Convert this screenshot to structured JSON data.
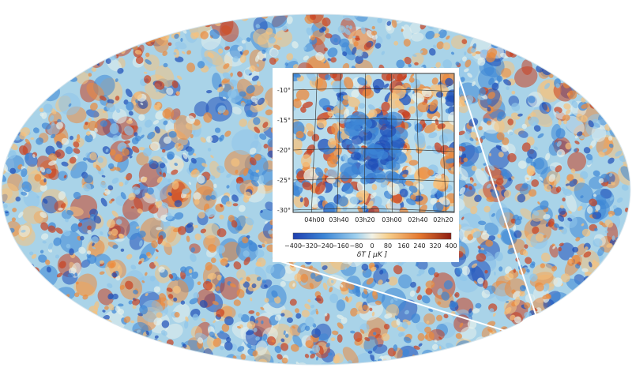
{
  "colors": {
    "deep_blue": "#1f4fb8",
    "blue": "#3d86d6",
    "light_blue": "#8fc4ea",
    "pale": "#e6f1ec",
    "light_orange": "#f6c27d",
    "orange": "#ec8a3c",
    "red": "#c9401f",
    "highlight_ring": "#ffffff"
  },
  "inset": {
    "y_ticks": [
      "-10°",
      "-15°",
      "-20°",
      "-25°",
      "-30°"
    ],
    "x_ticks": [
      "04h00",
      "03h40",
      "03h20",
      "03h00",
      "02h40",
      "02h20"
    ],
    "colorbar": {
      "ticks": [
        "−400",
        "−320",
        "−240",
        "−160",
        "−80",
        "0",
        "80",
        "160",
        "240",
        "320",
        "400"
      ],
      "title": "δT [ μK ]",
      "range": [
        -400,
        400
      ]
    }
  }
}
